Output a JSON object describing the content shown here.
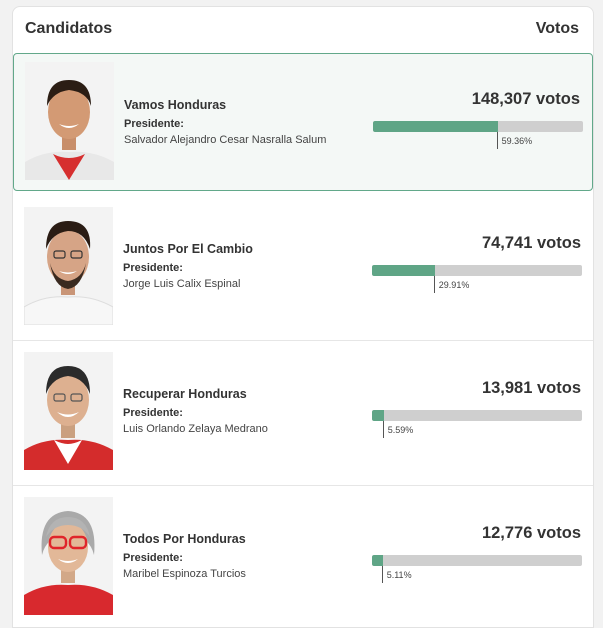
{
  "header": {
    "title": "Candidatos",
    "votes_label": "Votos"
  },
  "colors": {
    "accent": "#5fa586",
    "bar_bg": "#cfcfcf",
    "selected_border": "#62a88a",
    "selected_bg": "#f4f8f6"
  },
  "candidates": [
    {
      "party": "Vamos Honduras",
      "president_label": "Presidente:",
      "president_name": "Salvador Alejandro Cesar Nasralla Salum",
      "votes": "148,307 votos",
      "percent_label": "59.36%",
      "percent": 59.36,
      "selected": true,
      "photo_icon": "candidate-photo"
    },
    {
      "party": "Juntos Por El Cambio",
      "president_label": "Presidente:",
      "president_name": "Jorge Luis Calix Espinal",
      "votes": "74,741 votos",
      "percent_label": "29.91%",
      "percent": 29.91,
      "selected": false,
      "photo_icon": "candidate-photo"
    },
    {
      "party": "Recuperar Honduras",
      "president_label": "Presidente:",
      "president_name": "Luis Orlando Zelaya Medrano",
      "votes": "13,981 votos",
      "percent_label": "5.59%",
      "percent": 5.59,
      "selected": false,
      "photo_icon": "candidate-photo"
    },
    {
      "party": "Todos Por Honduras",
      "president_label": "Presidente:",
      "president_name": "Maribel Espinoza Turcios",
      "votes": "12,776 votos",
      "percent_label": "5.11%",
      "percent": 5.11,
      "selected": false,
      "photo_icon": "candidate-photo"
    }
  ]
}
